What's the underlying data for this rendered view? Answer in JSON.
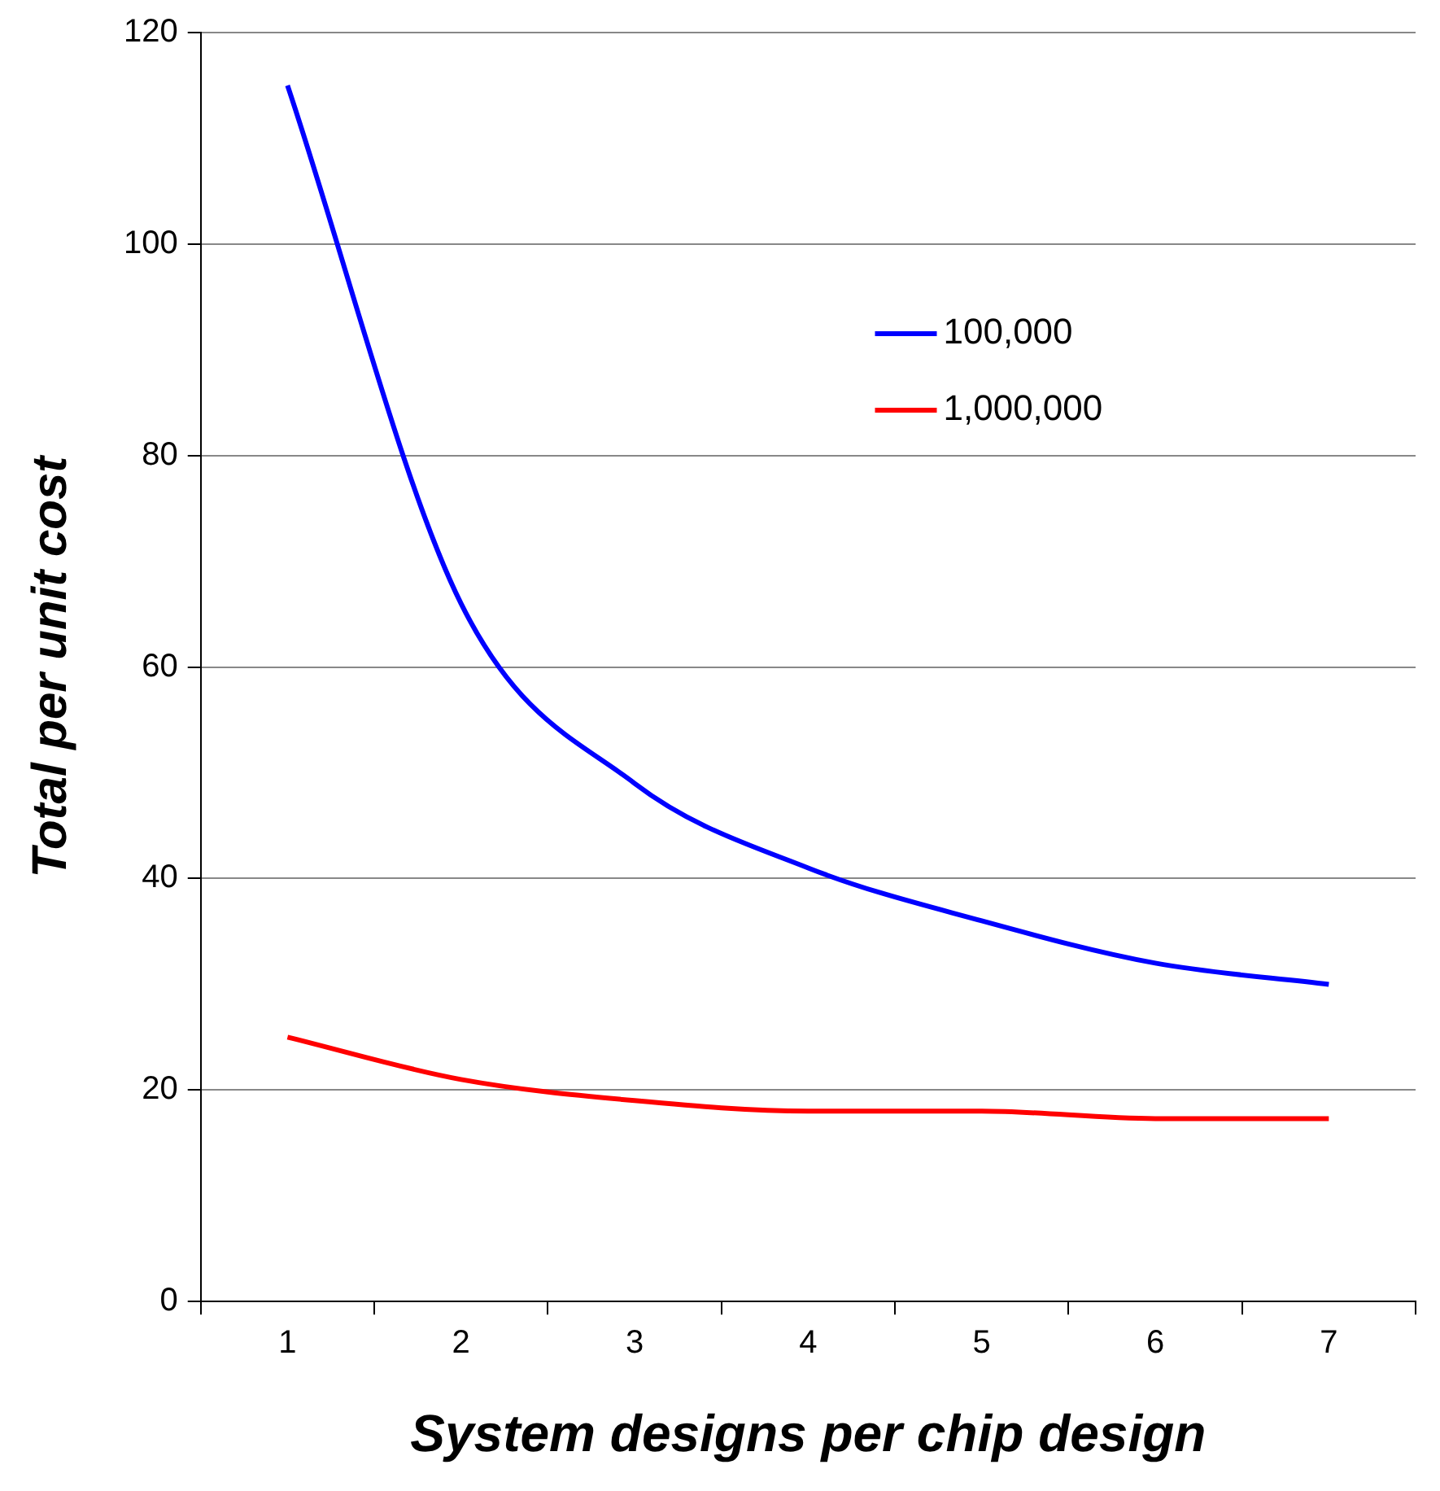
{
  "chart_data": {
    "type": "line",
    "xlabel": "System designs per chip design",
    "ylabel": "Total per unit cost",
    "categories": [
      "1",
      "2",
      "3",
      "4",
      "5",
      "6",
      "7"
    ],
    "series": [
      {
        "name": "100,000",
        "color": "#0000ff",
        "values": [
          115,
          66,
          49,
          41,
          36,
          32,
          30
        ]
      },
      {
        "name": "1,000,000",
        "color": "#ff0000",
        "values": [
          25,
          21,
          19,
          18,
          18,
          17.3,
          17.3
        ]
      }
    ],
    "ylim": [
      0,
      120
    ],
    "yticks": [
      0,
      20,
      40,
      60,
      80,
      100,
      120
    ],
    "grid": "y",
    "legend": "top right",
    "marker": "none",
    "line_style": "solid"
  }
}
